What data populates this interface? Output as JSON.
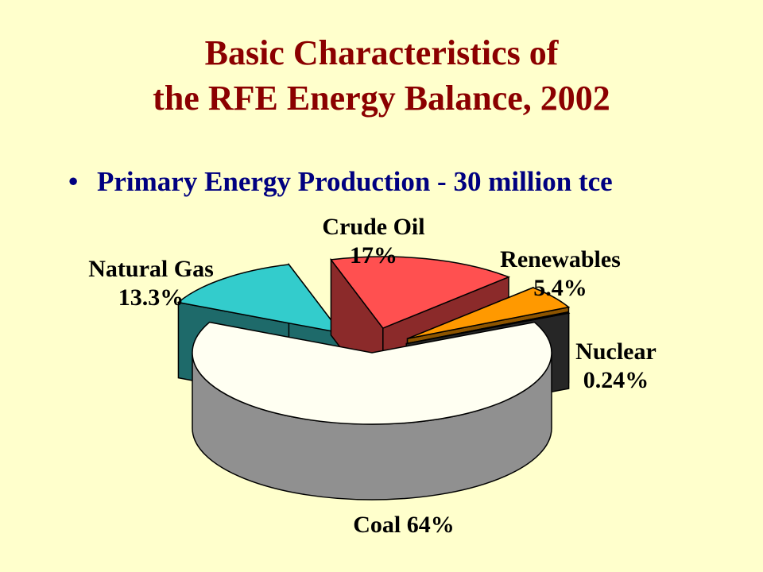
{
  "slide": {
    "title_line1": "Basic Characteristics of",
    "title_line2": "the RFE Energy Balance, 2002",
    "bullet": "•",
    "subtitle": "Primary Energy Production  - 30 million tce",
    "colors": {
      "background": "#FFFFCC",
      "title": "#8B0000",
      "subtitle": "#000080"
    }
  },
  "chart_data": {
    "type": "pie",
    "style": "3d-exploded",
    "slices": [
      {
        "name": "Coal",
        "value": 64,
        "label_line1": "Coal 64%",
        "label_line2": "",
        "color": "#FFFFF2",
        "side_color": "#909090"
      },
      {
        "name": "Natural Gas",
        "value": 13.3,
        "label_line1": "Natural Gas",
        "label_line2": "13.3%",
        "color": "#33CCCC",
        "side_color": "#1E6A6A"
      },
      {
        "name": "Crude Oil",
        "value": 17,
        "label_line1": "Crude Oil",
        "label_line2": "17%",
        "color": "#FF5050",
        "side_color": "#8B2A2A"
      },
      {
        "name": "Renewables",
        "value": 5.4,
        "label_line1": "Renewables",
        "label_line2": "5.4%",
        "color": "#FF9900",
        "side_color": "#8C5400"
      },
      {
        "name": "Nuclear",
        "value": 0.24,
        "label_line1": "Nuclear",
        "label_line2": "0.24%",
        "color": "#404040",
        "side_color": "#262626"
      }
    ]
  }
}
